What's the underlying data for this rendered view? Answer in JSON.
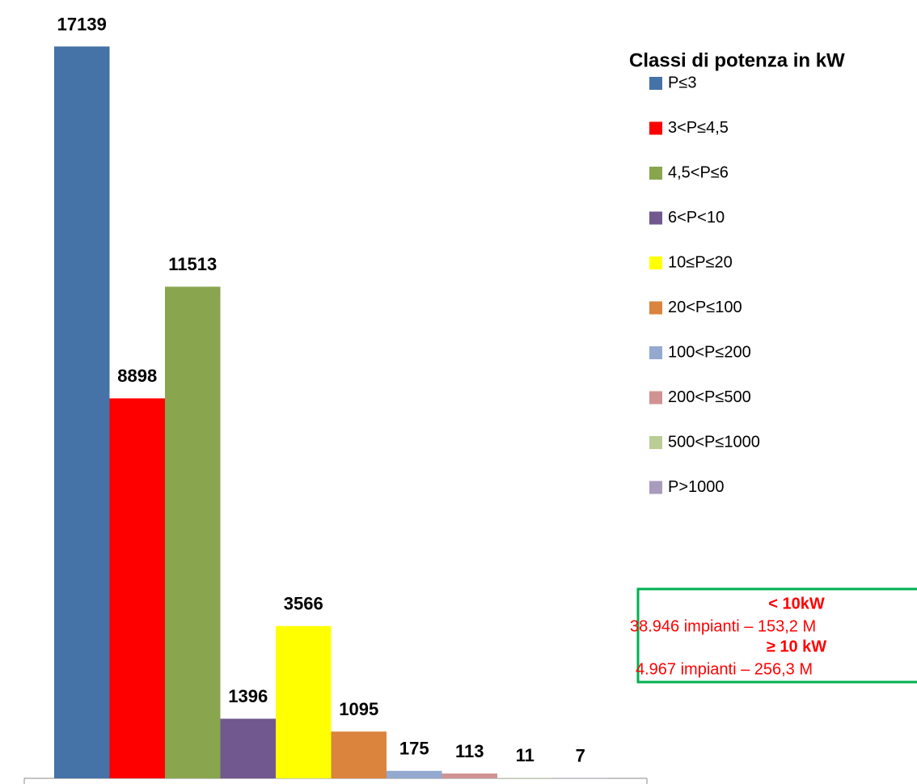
{
  "chart_data": {
    "type": "bar",
    "legend_title": "Classi di potenza in kW",
    "categories": [
      "P≤3",
      "3<P≤4,5",
      "4,5<P≤6",
      "6<P<10",
      "10≤P≤20",
      "20<P≤100",
      "100<P≤200",
      "200<P≤500",
      "500<P≤1000",
      "P>1000"
    ],
    "values": [
      17139,
      8898,
      11513,
      1396,
      3566,
      1095,
      175,
      113,
      11,
      7
    ],
    "colors": [
      "#4572A7",
      "#FF0000",
      "#89A54E",
      "#71588F",
      "#FFFF00",
      "#DB843D",
      "#93A9CF",
      "#D19392",
      "#B9CD96",
      "#A99BBD"
    ],
    "ylim": [
      0,
      18000
    ],
    "legend": "right",
    "annotations": [
      "< 10kW",
      "38.946 impianti – 153,2 M",
      "≥ 10 kW",
      "4.967 impianti – 256,3 M"
    ]
  }
}
